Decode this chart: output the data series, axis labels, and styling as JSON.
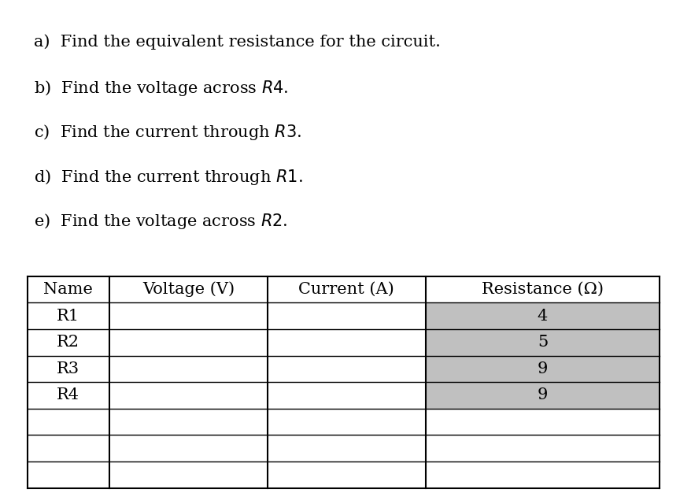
{
  "questions": [
    "a)  Find the equivalent resistance for the circuit.",
    "b)  Find the voltage across $R4$.",
    "c)  Find the current through $R3$.",
    "d)  Find the current through $R1$.",
    "e)  Find the voltage across $R2$."
  ],
  "table_headers": [
    "Name",
    "Voltage (V)",
    "Current (A)",
    "Resistance (Ω)"
  ],
  "table_rows": [
    [
      "R1",
      "",
      "",
      "4"
    ],
    [
      "R2",
      "",
      "",
      "5"
    ],
    [
      "R3",
      "",
      "",
      "9"
    ],
    [
      "R4",
      "",
      "",
      "9"
    ],
    [
      "",
      "",
      "",
      ""
    ],
    [
      "",
      "",
      "",
      ""
    ],
    [
      "",
      "",
      "",
      ""
    ]
  ],
  "shaded_col": 3,
  "shaded_rows": [
    0,
    1,
    2,
    3
  ],
  "shade_color": "#c0c0c0",
  "background_color": "#ffffff",
  "text_color": "#000000",
  "font_size": 15,
  "table_font_size": 15
}
